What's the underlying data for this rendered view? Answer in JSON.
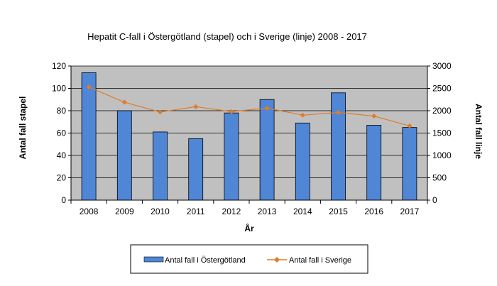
{
  "chart_data": {
    "type": "bar+line",
    "title": "Hepatit  C-fall i Östergötland (stapel) och i Sverige (linje) 2008 -  2017",
    "xlabel": "År",
    "ylabel_left": "Antal fall stapel",
    "ylabel_right": "Antal fall linje",
    "categories": [
      "2008",
      "2009",
      "2010",
      "2011",
      "2012",
      "2013",
      "2014",
      "2015",
      "2016",
      "2017"
    ],
    "ylim_left": [
      0,
      120
    ],
    "yticks_left": [
      0,
      20,
      40,
      60,
      80,
      100,
      120
    ],
    "ylim_right": [
      0,
      3000
    ],
    "yticks_right": [
      0,
      500,
      1000,
      1500,
      2000,
      2500,
      3000
    ],
    "grid": true,
    "legend_position": "bottom",
    "series": [
      {
        "name": "Antal fall i Östergötland",
        "type": "bar",
        "axis": "left",
        "color": "#4f86d6",
        "values": [
          114,
          80,
          61,
          55,
          78,
          90,
          69,
          96,
          67,
          65
        ]
      },
      {
        "name": "Antal fall i Sverige",
        "type": "line",
        "axis": "right",
        "color": "#e07b26",
        "values": [
          2530,
          2190,
          1970,
          2090,
          1980,
          2060,
          1900,
          1960,
          1880,
          1660
        ]
      }
    ]
  }
}
